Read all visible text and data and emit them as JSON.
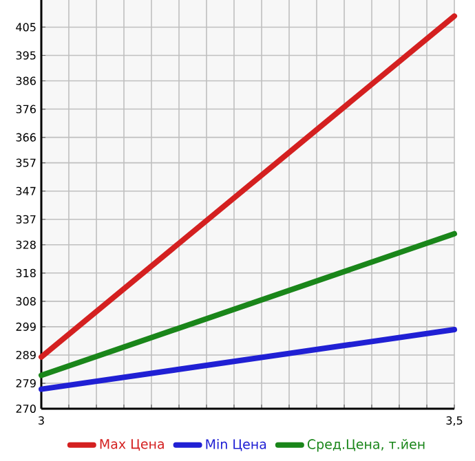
{
  "chart_data": {
    "type": "line",
    "x": [
      3,
      3.5
    ],
    "series": [
      {
        "name": "Max Цена",
        "color": "#d42020",
        "values": [
          288.3,
          408.9
        ]
      },
      {
        "name": "Min Цена",
        "color": "#2020d4",
        "values": [
          276.9,
          298
        ]
      },
      {
        "name": "Сред.Цена, т.йен",
        "color": "#1a861a",
        "values": [
          281.8,
          331.9
        ]
      }
    ],
    "xlim": [
      3,
      3.5
    ],
    "xticks": [
      3,
      {
        "value": 3.0333,
        "label": null
      },
      {
        "value": 3.0667,
        "label": null
      },
      {
        "value": 3.1,
        "label": null
      },
      {
        "value": 3.1333,
        "label": null
      },
      {
        "value": 3.1667,
        "label": null
      },
      {
        "value": 3.2,
        "label": null
      },
      {
        "value": 3.2333,
        "label": null
      },
      {
        "value": 3.2667,
        "label": null
      },
      {
        "value": 3.3,
        "label": null
      },
      {
        "value": 3.3333,
        "label": null
      },
      {
        "value": 3.3667,
        "label": null
      },
      {
        "value": 3.4,
        "label": null
      },
      {
        "value": 3.4333,
        "label": null
      },
      {
        "value": 3.4667,
        "label": null
      },
      {
        "value": 3.5,
        "label": "3,5"
      }
    ],
    "ylim": [
      270,
      414.6
    ],
    "yticks": [
      270,
      279,
      289,
      299,
      308,
      318,
      328,
      337,
      347,
      357,
      366,
      376,
      386,
      395,
      405
    ],
    "grid": true,
    "legend": "bottom",
    "marker": "none",
    "line_style": "solid"
  }
}
